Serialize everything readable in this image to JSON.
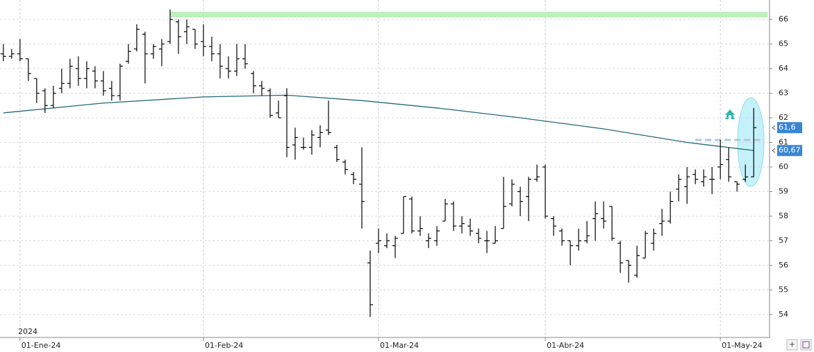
{
  "chart_data": {
    "type": "ohlc",
    "year_label": "2024",
    "x": [
      -2,
      -1,
      0,
      1,
      2,
      3,
      4,
      5,
      6,
      7,
      8,
      9,
      10,
      11,
      12,
      13,
      14,
      15,
      16,
      17,
      18,
      19,
      20,
      21,
      22,
      23,
      24,
      25,
      26,
      27,
      28,
      29,
      30,
      31,
      32,
      33,
      34,
      35,
      36,
      37,
      38,
      39,
      40,
      41,
      42,
      43,
      44,
      45,
      46,
      47,
      48,
      49,
      50,
      51,
      52,
      53,
      54,
      55,
      56,
      57,
      58,
      59,
      60,
      61,
      62,
      63,
      64,
      65,
      66,
      67,
      68,
      69,
      70,
      71,
      72,
      73,
      74,
      75,
      76,
      77,
      78,
      79,
      80,
      81,
      82,
      83,
      84,
      85,
      86,
      87,
      88
    ],
    "open": [
      64.6,
      64.5,
      64.6,
      64.4,
      63.6,
      63.1,
      62.5,
      63.2,
      63.4,
      64.0,
      63.6,
      63.9,
      63.5,
      63.2,
      62.9,
      64.3,
      64.8,
      65.4,
      64.6,
      64.8,
      65.1,
      65.9,
      65.5,
      65.6,
      65.1,
      64.9,
      64.6,
      64.0,
      63.9,
      64.4,
      63.8,
      63.3,
      63.1,
      62.2,
      62.9,
      60.9,
      60.8,
      60.8,
      61.2,
      61.5,
      60.8,
      60.2,
      59.7,
      59.3,
      56.1,
      56.9,
      56.8,
      56.8,
      57.3,
      58.7,
      57.4,
      57.0,
      57.0,
      57.8,
      58.5,
      57.6,
      57.6,
      57.3,
      57.0,
      56.9,
      57.5,
      58.5,
      59.0,
      58.8,
      59.5,
      60.0,
      57.9,
      57.4,
      57.0,
      56.8,
      57.0,
      57.9,
      57.9,
      58.4,
      56.9,
      56.2,
      55.6,
      56.3,
      56.9,
      57.7,
      57.8,
      59.1,
      59.2,
      59.7,
      59.4,
      59.5,
      60.0,
      60.3,
      59.4,
      59.5,
      59.6
    ],
    "high": [
      65.0,
      64.8,
      65.2,
      64.4,
      63.6,
      63.2,
      63.3,
      64.0,
      64.4,
      64.5,
      64.3,
      64.1,
      63.9,
      63.5,
      64.2,
      65.0,
      65.8,
      65.5,
      65.0,
      65.2,
      66.4,
      66.0,
      66.0,
      65.6,
      65.8,
      65.3,
      65.0,
      64.5,
      65.0,
      65.0,
      63.9,
      63.5,
      63.2,
      62.7,
      63.2,
      61.6,
      61.2,
      61.5,
      61.7,
      62.7,
      60.9,
      60.3,
      59.8,
      60.8,
      56.6,
      57.5,
      57.3,
      57.2,
      58.8,
      58.8,
      58.0,
      57.3,
      57.6,
      58.7,
      58.6,
      58.0,
      57.9,
      57.5,
      57.4,
      57.6,
      59.6,
      59.5,
      59.2,
      59.6,
      60.1,
      60.1,
      58.0,
      57.5,
      57.0,
      57.5,
      57.8,
      58.6,
      58.6,
      58.4,
      57.0,
      56.2,
      56.8,
      57.4,
      57.5,
      58.3,
      59.0,
      59.7,
      60.0,
      59.9,
      59.9,
      60.0,
      61.1,
      60.8,
      59.4,
      60.1,
      62.4
    ],
    "low": [
      64.3,
      64.4,
      64.3,
      63.5,
      62.6,
      62.2,
      62.4,
      63.0,
      63.2,
      63.3,
      63.2,
      63.2,
      62.9,
      62.7,
      62.7,
      64.2,
      64.7,
      63.4,
      64.4,
      64.1,
      65.0,
      64.6,
      65.0,
      64.8,
      64.5,
      64.3,
      63.6,
      63.6,
      63.7,
      64.0,
      63.0,
      62.9,
      62.0,
      62.0,
      60.4,
      60.3,
      60.7,
      60.5,
      60.8,
      61.3,
      60.2,
      59.7,
      59.3,
      57.5,
      53.9,
      56.5,
      56.7,
      56.3,
      57.3,
      57.3,
      57.2,
      56.7,
      56.8,
      57.8,
      57.4,
      57.3,
      57.2,
      56.9,
      56.5,
      56.9,
      57.5,
      58.4,
      58.0,
      57.8,
      59.4,
      57.9,
      57.2,
      56.8,
      56.0,
      56.6,
      56.9,
      57.0,
      57.5,
      57.0,
      55.7,
      55.3,
      55.5,
      56.3,
      56.6,
      57.2,
      57.7,
      58.6,
      58.5,
      59.3,
      59.2,
      58.9,
      59.5,
      59.4,
      59.0,
      59.4,
      59.6
    ],
    "close": [
      64.5,
      64.6,
      64.4,
      63.8,
      63.0,
      62.5,
      63.0,
      63.4,
      64.1,
      63.6,
      64.0,
      63.5,
      63.1,
      62.9,
      64.1,
      64.7,
      65.6,
      64.6,
      64.9,
      65.0,
      66.0,
      65.3,
      65.7,
      65.0,
      64.9,
      64.6,
      64.1,
      63.9,
      64.4,
      64.2,
      63.3,
      63.2,
      62.1,
      62.0,
      60.8,
      61.2,
      60.8,
      61.3,
      61.4,
      61.4,
      60.3,
      59.9,
      59.5,
      58.6,
      54.4,
      57.0,
      57.0,
      57.1,
      58.8,
      57.4,
      57.5,
      57.1,
      57.4,
      58.5,
      57.6,
      57.7,
      57.4,
      57.1,
      57.0,
      57.0,
      58.4,
      59.3,
      58.6,
      59.5,
      59.6,
      58.0,
      57.6,
      57.0,
      56.8,
      57.0,
      57.2,
      58.1,
      57.8,
      57.1,
      56.1,
      56.0,
      56.4,
      57.3,
      57.3,
      57.8,
      58.6,
      59.5,
      59.6,
      59.5,
      59.6,
      59.5,
      60.1,
      59.6,
      59.3,
      59.6,
      61.6
    ],
    "bar_color": "#000000",
    "ma": {
      "x": [
        -2,
        10,
        22,
        32,
        41,
        50,
        60,
        70,
        80,
        88
      ],
      "values": [
        62.2,
        62.6,
        62.85,
        62.92,
        62.7,
        62.4,
        62.0,
        61.55,
        61.0,
        60.67
      ],
      "color": "#1f6878"
    },
    "levels": [
      {
        "value": 66.2,
        "from": 18,
        "to": 89.7,
        "color": "#bdf0bd",
        "style": "solid"
      },
      {
        "value": 61.1,
        "from": 81,
        "to": 89,
        "color": "#a8c8e6",
        "style": "dashed"
      }
    ],
    "price_markers": [
      {
        "value": 61.6,
        "label": "61,6",
        "color": "#3a86d6"
      },
      {
        "value": 60.67,
        "label": "60,67",
        "color": "#3a86d6"
      }
    ],
    "xlim": [
      -2.4,
      89.9
    ],
    "xticks": [
      {
        "value": 0,
        "label": "01-Ene-24"
      },
      {
        "value": 22,
        "label": "01-Feb-24"
      },
      {
        "value": 43,
        "label": "01-Mar-24"
      },
      {
        "value": 63,
        "label": "01-Abr-24"
      },
      {
        "value": 84,
        "label": "01-May-24"
      }
    ],
    "ylim": [
      53.07,
      66.79
    ],
    "yticks": [
      54,
      55,
      56,
      57,
      58,
      59,
      60,
      61,
      62,
      63,
      64,
      65,
      66
    ],
    "grid": true
  }
}
